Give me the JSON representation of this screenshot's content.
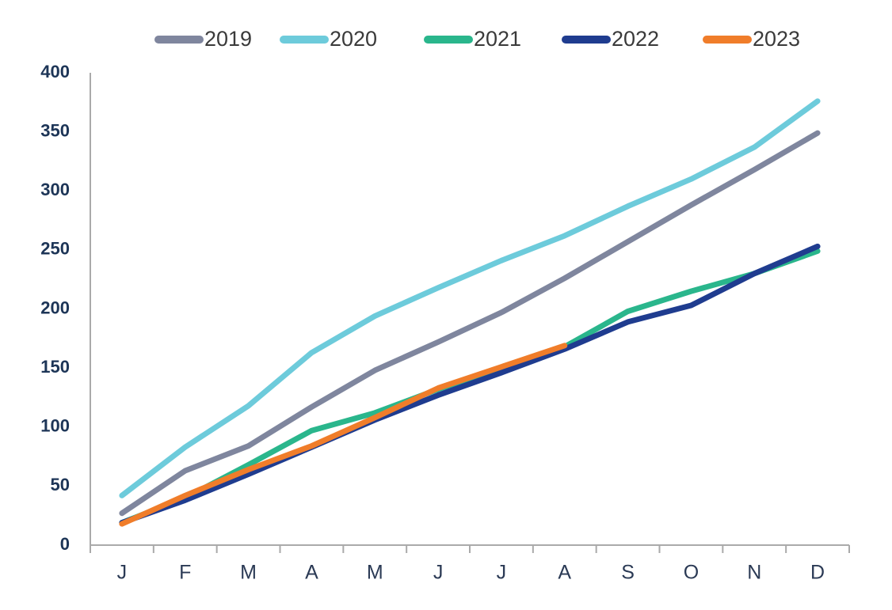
{
  "chart_data": {
    "type": "line",
    "categories": [
      "J",
      "F",
      "M",
      "A",
      "M",
      "J",
      "J",
      "A",
      "S",
      "O",
      "N",
      "D"
    ],
    "series": [
      {
        "name": "2019",
        "color": "#7f869e",
        "values": [
          27,
          63,
          84,
          117,
          148,
          172,
          197,
          226,
          257,
          288,
          318,
          349
        ]
      },
      {
        "name": "2020",
        "color": "#6dcbdb",
        "values": [
          42,
          83,
          118,
          163,
          194,
          218,
          241,
          262,
          287,
          310,
          337,
          376
        ]
      },
      {
        "name": "2021",
        "color": "#2ab68c",
        "values": [
          19,
          40,
          68,
          97,
          112,
          132,
          150,
          168,
          198,
          215,
          230,
          249
        ]
      },
      {
        "name": "2022",
        "color": "#1f3c8f",
        "values": [
          19,
          38,
          60,
          83,
          106,
          127,
          146,
          166,
          189,
          203,
          230,
          253
        ]
      },
      {
        "name": "2023",
        "color": "#f07d2a",
        "values": [
          18,
          42,
          64,
          84,
          108,
          133,
          151,
          169,
          null,
          null,
          null,
          null
        ]
      }
    ],
    "ylim": [
      0,
      400
    ],
    "yticks": [
      0,
      50,
      100,
      150,
      200,
      250,
      300,
      350,
      400
    ],
    "grid": false,
    "legend": "top"
  }
}
